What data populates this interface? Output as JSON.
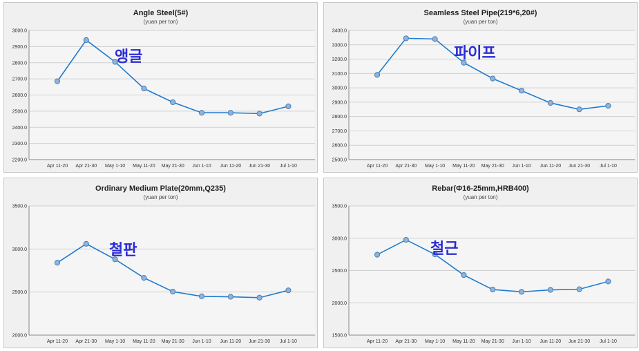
{
  "chart_data": [
    {
      "type": "line",
      "title": "Angle Steel(5#)",
      "subtitle": "(yuan per ton)",
      "annotation": "앵글",
      "categories": [
        "Apr 11-20",
        "Apr 21-30",
        "May 1-10",
        "May 11-20",
        "May 21-30",
        "Jun 1-10",
        "Jun 11-20",
        "Jun 21-30",
        "Jul 1-10"
      ],
      "values": [
        2685,
        2940,
        2805,
        2640,
        2555,
        2490,
        2490,
        2485,
        2530
      ],
      "yticks": [
        "3000.0",
        "2900.0",
        "2800.0",
        "2700.0",
        "2600.0",
        "2500.0",
        "2400.0",
        "2300.0",
        "2200.0"
      ],
      "ylim": [
        2200,
        3000
      ],
      "grid": true,
      "color": "#1f7bd0"
    },
    {
      "type": "line",
      "title": "Seamless Steel Pipe(219*6,20#)",
      "subtitle": "(yuan per ton)",
      "annotation": "파이프",
      "categories": [
        "Apr 11-20",
        "Apr 21-30",
        "May 1-10",
        "May 11-20",
        "May 21-30",
        "Jun 1-10",
        "Jun 11-20",
        "Jun 21-30",
        "Jul 1-10"
      ],
      "values": [
        3090,
        3345,
        3340,
        3175,
        3065,
        2980,
        2895,
        2850,
        2875
      ],
      "yticks": [
        "3400.0",
        "3300.0",
        "3200.0",
        "3100.0",
        "3000.0",
        "2900.0",
        "2800.0",
        "2700.0",
        "2600.0",
        "2500.0"
      ],
      "ylim": [
        2500,
        3400
      ],
      "grid": true,
      "color": "#1f7bd0"
    },
    {
      "type": "line",
      "title": "Ordinary Medium Plate(20mm,Q235)",
      "subtitle": "(yuan per ton)",
      "annotation": "철판",
      "categories": [
        "Apr 11-20",
        "Apr 21-30",
        "May 1-10",
        "May 11-20",
        "May 21-30",
        "Jun 1-10",
        "Jun 11-20",
        "Jun 21-30",
        "Jul 1-10"
      ],
      "values": [
        2840,
        3060,
        2880,
        2665,
        2505,
        2450,
        2445,
        2435,
        2520
      ],
      "yticks": [
        "3500.0",
        "3000.0",
        "2500.0",
        "2000.0"
      ],
      "ylim": [
        2000,
        3500
      ],
      "grid": true,
      "color": "#1f7bd0"
    },
    {
      "type": "line",
      "title": "Rebar(Φ16-25mm,HRB400)",
      "subtitle": "(yuan per ton)",
      "annotation": "철근",
      "categories": [
        "Apr 11-20",
        "Apr 21-30",
        "May 1-10",
        "May 11-20",
        "May 21-30",
        "Jun 1-10",
        "Jun 11-20",
        "Jun 21-30",
        "Jul 1-10"
      ],
      "values": [
        2745,
        2975,
        2750,
        2430,
        2205,
        2170,
        2200,
        2210,
        2330
      ],
      "yticks": [
        "3500.0",
        "3000.0",
        "2500.0",
        "2000.0",
        "1500.0"
      ],
      "ylim": [
        1500,
        3500
      ],
      "grid": true,
      "color": "#1f7bd0"
    }
  ]
}
